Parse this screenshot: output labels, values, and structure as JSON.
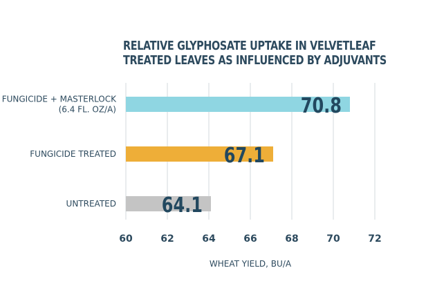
{
  "chart_data": {
    "type": "bar",
    "orientation": "horizontal",
    "title": "RELATIVE GLYPHOSATE UPTAKE IN VELVETLEAF TREATED LEAVES AS INFLUENCED BY ADJUVANTS",
    "title_lines": [
      "RELATIVE GLYPHOSATE UPTAKE IN VELVETLEAF",
      "TREATED LEAVES AS INFLUENCED BY ADJUVANTS"
    ],
    "categories": [
      {
        "lines": [
          "FUNGICIDE + MASTERLOCK",
          "(6.4 FL. OZ/A)"
        ]
      },
      {
        "lines": [
          "FUNGICIDE TREATED"
        ]
      },
      {
        "lines": [
          "UNTREATED"
        ]
      }
    ],
    "values": [
      70.8,
      67.1,
      64.1
    ],
    "data_labels": [
      "70.8",
      "67.1",
      "64.1"
    ],
    "colors": [
      "#8fd6e2",
      "#eeae38",
      "#c4c4c4"
    ],
    "xlabel": "WHEAT YIELD, BU/A",
    "ylabel": "",
    "xlim": [
      60,
      72
    ],
    "xticks": [
      60,
      62,
      64,
      66,
      68,
      70,
      72
    ],
    "grid": true,
    "legend": "none"
  }
}
